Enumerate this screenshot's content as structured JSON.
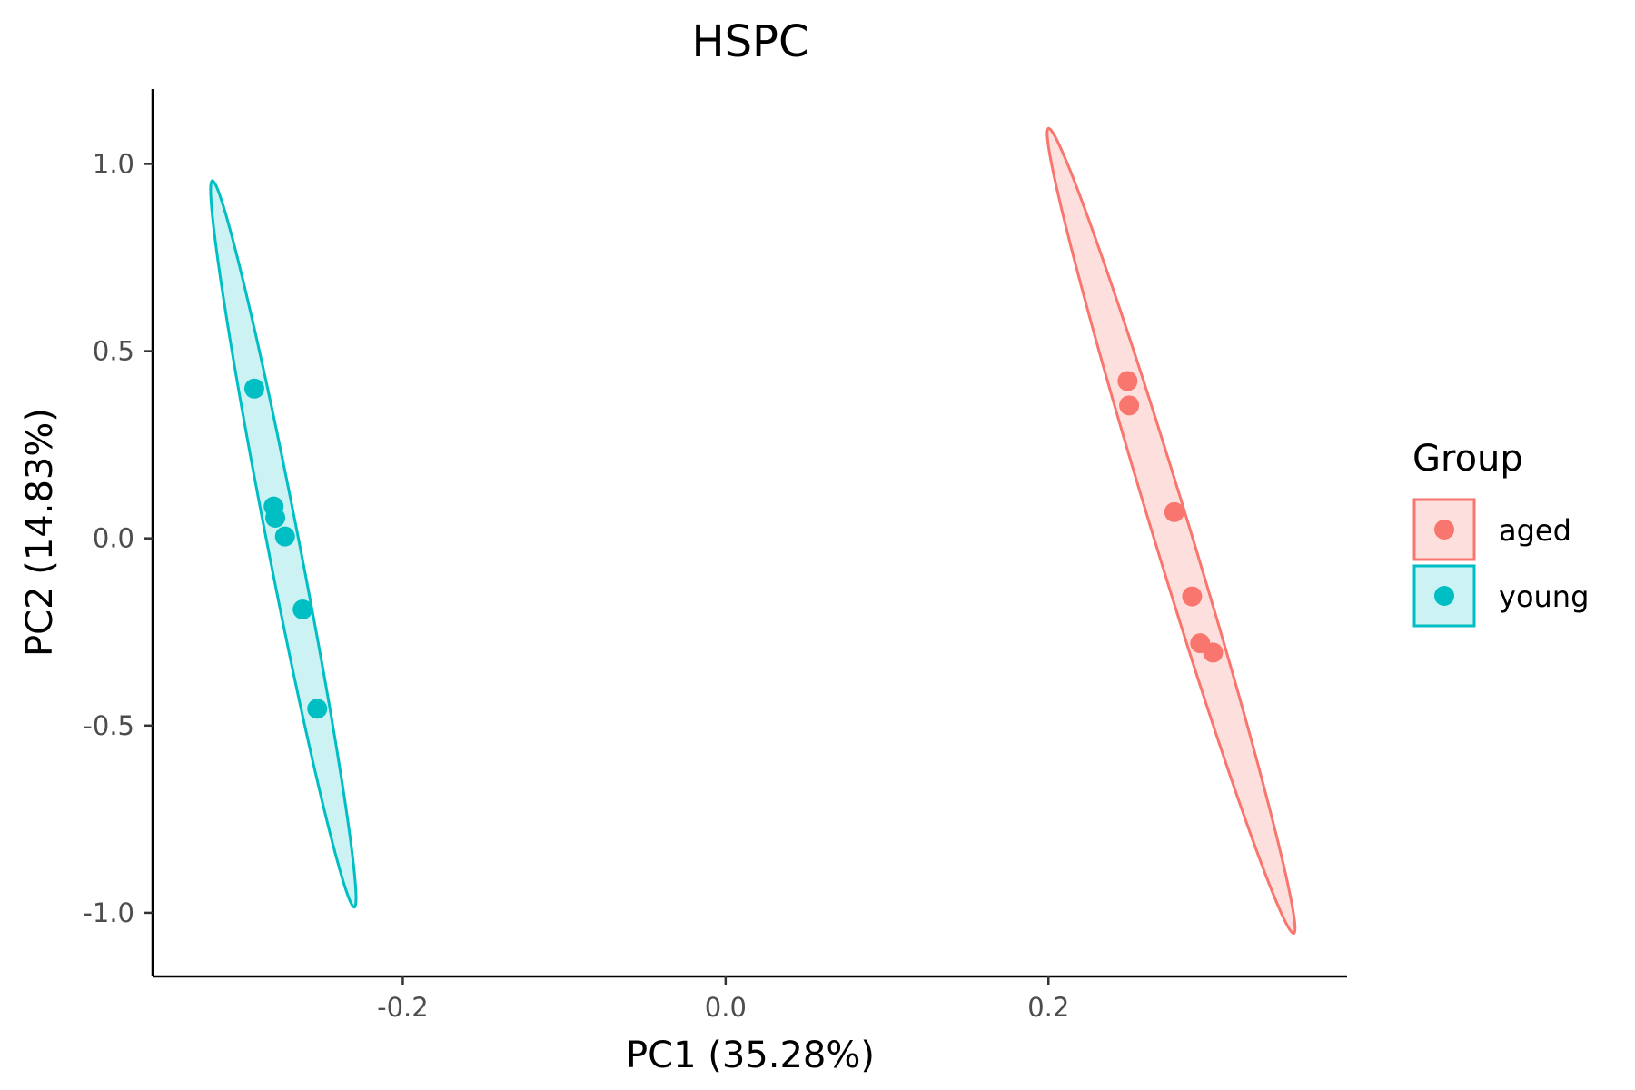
{
  "chart_data": {
    "type": "scatter",
    "title": "HSPC",
    "xlabel": "PC1 (35.28%)",
    "ylabel": "PC2 (14.83%)",
    "xlim": [
      -0.355,
      0.385
    ],
    "ylim": [
      -1.17,
      1.2
    ],
    "xticks": [
      -0.2,
      0.0,
      0.2
    ],
    "xtick_labels": [
      "-0.2",
      "0.0",
      "0.2"
    ],
    "yticks": [
      -1.0,
      -0.5,
      0.0,
      0.5,
      1.0
    ],
    "ytick_labels": [
      "-1.0",
      "-0.5",
      "0.0",
      "0.5",
      "1.0"
    ],
    "grid": false,
    "legend": {
      "title": "Group",
      "position": "right"
    },
    "series": [
      {
        "name": "aged",
        "color": "#F8766D",
        "fill": "#FDE0DE",
        "points": [
          {
            "x": 0.249,
            "y": 0.42
          },
          {
            "x": 0.25,
            "y": 0.355
          },
          {
            "x": 0.278,
            "y": 0.07
          },
          {
            "x": 0.289,
            "y": -0.155
          },
          {
            "x": 0.294,
            "y": -0.28
          },
          {
            "x": 0.302,
            "y": -0.305
          }
        ],
        "ellipse": {
          "center": [
            0.276,
            -0.215
          ],
          "tip_a": [
            0.2,
            1.095
          ],
          "tip_b": [
            0.352,
            -1.055
          ],
          "minor_half_width_x": 0.012
        }
      },
      {
        "name": "young",
        "color": "#00BFC4",
        "fill": "#CCF2F3",
        "points": [
          {
            "x": -0.292,
            "y": 0.4
          },
          {
            "x": -0.28,
            "y": 0.085
          },
          {
            "x": -0.279,
            "y": 0.055
          },
          {
            "x": -0.273,
            "y": 0.005
          },
          {
            "x": -0.262,
            "y": -0.19
          },
          {
            "x": -0.253,
            "y": -0.455
          }
        ],
        "ellipse": {
          "center": [
            -0.274,
            -0.01
          ],
          "tip_a": [
            -0.318,
            0.955
          ],
          "tip_b": [
            -0.23,
            -0.985
          ],
          "minor_half_width_x": 0.01
        }
      }
    ]
  }
}
